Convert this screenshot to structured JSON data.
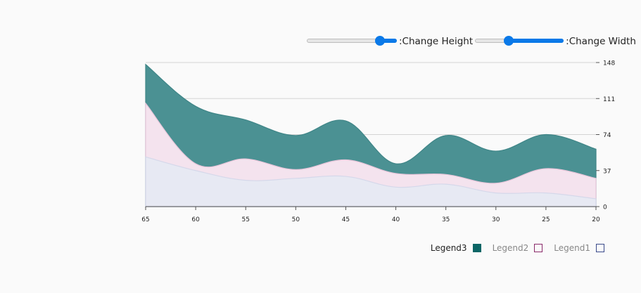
{
  "controls": {
    "height_label": ":Change Height",
    "width_label": ":Change Width",
    "height_value": 0.85,
    "width_value": 0.37
  },
  "chart_data": {
    "type": "area",
    "x": [
      65,
      60,
      55,
      50,
      45,
      40,
      35,
      30,
      25,
      20
    ],
    "xlim": [
      65,
      20
    ],
    "ylim": [
      0,
      148
    ],
    "yticks": [
      0,
      37,
      74,
      111,
      148
    ],
    "xticks": [
      65,
      60,
      55,
      50,
      45,
      40,
      35,
      30,
      25,
      20
    ],
    "stacked": true,
    "grid": true,
    "legend_placement": "bottom-right",
    "series": [
      {
        "name": "Legend1",
        "values": [
          51,
          37,
          27,
          29,
          31,
          20,
          23,
          14,
          14,
          8
        ],
        "color": "#e7e9f3",
        "stroke": "#d5d8ea"
      },
      {
        "name": "Legend2",
        "values": [
          106,
          44,
          49,
          38,
          48,
          34,
          33,
          24,
          39,
          29
        ],
        "color": "#f4e3ee",
        "stroke": "#e8c6da"
      },
      {
        "name": "Legend3",
        "values": [
          146,
          103,
          89,
          73,
          88,
          44,
          73,
          57,
          74,
          59
        ],
        "color": "#4b9193",
        "stroke": "#3f8587"
      }
    ]
  },
  "legend": {
    "items": [
      {
        "label": "Legend3",
        "color": "#0c6666",
        "filled": true,
        "active": true
      },
      {
        "label": "Legend2",
        "color": "#8a2a6a",
        "filled": false,
        "active": false
      },
      {
        "label": "Legend1",
        "color": "#3a4a8a",
        "filled": false,
        "active": false
      }
    ]
  }
}
